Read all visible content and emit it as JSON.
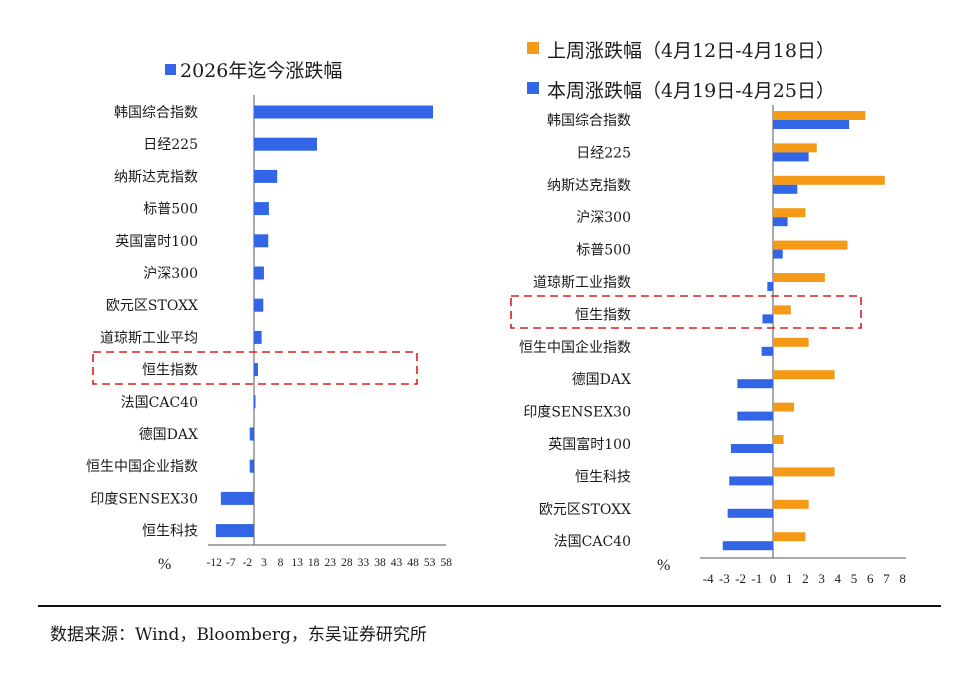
{
  "source_text": "数据来源：Wind，Bloomberg，东吴证券研究所",
  "colors": {
    "blue": "#3366e6",
    "orange": "#f59a16",
    "highlight": "#d62020"
  },
  "chart_data": [
    {
      "type": "bar",
      "orientation": "horizontal",
      "legend": {
        "title": "2026年迄今涨跌幅",
        "color": "#3366e6"
      },
      "unit_label": "%",
      "categories": [
        "韩国综合指数",
        "日经225",
        "纳斯达克指数",
        "标普500",
        "英国富时100",
        "沪深300",
        "欧元区STOXX",
        "道琼斯工业平均",
        "恒生指数",
        "法国CAC40",
        "德国DAX",
        "恒生中国企业指数",
        "印度SENSEX30",
        "恒生科技"
      ],
      "values": [
        54,
        19,
        7,
        4.5,
        4.3,
        3,
        2.8,
        2.3,
        1.2,
        0.1,
        -1.3,
        -1.3,
        -10,
        -11.5
      ],
      "xlim": [
        -14.5,
        58
      ],
      "xticks": [
        "-12",
        "-7",
        "-2",
        "3",
        "8",
        "13",
        "18",
        "23",
        "28",
        "33",
        "38",
        "43",
        "48",
        "53",
        "58"
      ],
      "xtick_values": [
        -12,
        -7,
        -2,
        3,
        8,
        13,
        18,
        23,
        28,
        33,
        38,
        43,
        48,
        53,
        58
      ],
      "highlight_category": "恒生指数"
    },
    {
      "type": "bar",
      "orientation": "horizontal",
      "unit_label": "%",
      "series": [
        {
          "name": "上周涨跌幅（4月12日-4月18日）",
          "color": "#f59a16",
          "values": [
            5.7,
            2.7,
            6.9,
            2.0,
            4.6,
            3.2,
            1.1,
            2.2,
            3.8,
            1.3,
            0.65,
            3.8,
            2.2,
            2.0
          ]
        },
        {
          "name": "本周涨跌幅（4月19日-4月25日）",
          "color": "#3366e6",
          "values": [
            4.7,
            2.2,
            1.5,
            0.9,
            0.6,
            -0.35,
            -0.65,
            -0.7,
            -2.2,
            -2.2,
            -2.6,
            -2.7,
            -2.8,
            -3.1
          ]
        }
      ],
      "categories": [
        "韩国综合指数",
        "日经225",
        "纳斯达克指数",
        "沪深300",
        "标普500",
        "道琼斯工业指数",
        "恒生指数",
        "恒生中国企业指数",
        "德国DAX",
        "印度SENSEX30",
        "英国富时100",
        "恒生科技",
        "欧元区STOXX",
        "法国CAC40"
      ],
      "xlim": [
        -4,
        8
      ],
      "xticks": [
        "-4",
        "-3",
        "-2",
        "-1",
        "0",
        "1",
        "2",
        "3",
        "4",
        "5",
        "6",
        "7",
        "8"
      ],
      "xtick_values": [
        -4,
        -3,
        -2,
        -1,
        0,
        1,
        2,
        3,
        4,
        5,
        6,
        7,
        8
      ],
      "highlight_category": "恒生指数"
    }
  ]
}
